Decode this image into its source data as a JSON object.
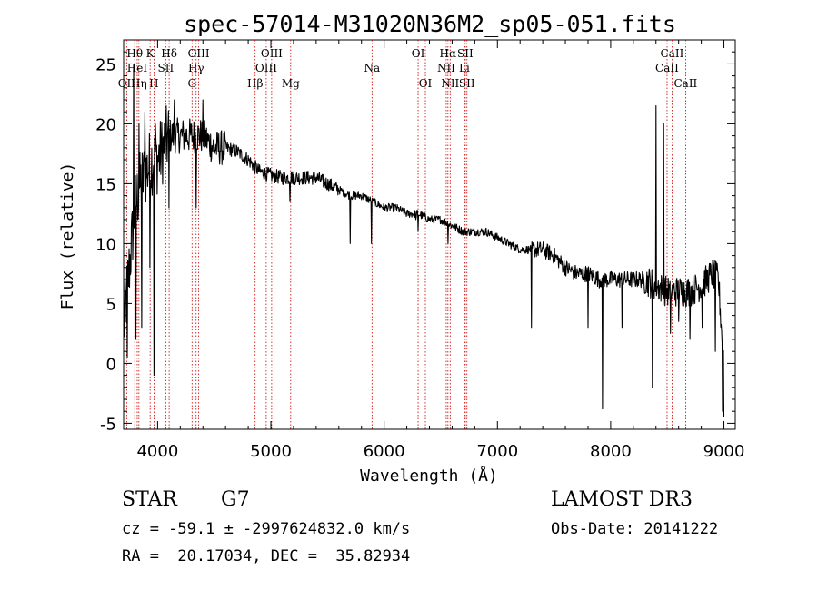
{
  "chart_data": {
    "type": "line",
    "title": "spec-57014-M31020N36M2_sp05-051.fits",
    "xlabel": "Wavelength (Å)",
    "ylabel": "Flux (relative)",
    "xlim": [
      3700,
      9100
    ],
    "ylim": [
      -5.5,
      27
    ],
    "xticks": [
      4000,
      5000,
      6000,
      7000,
      8000,
      9000
    ],
    "yticks": [
      -5,
      0,
      5,
      10,
      15,
      20,
      25
    ],
    "continuum": [
      [
        3700,
        3
      ],
      [
        3750,
        8
      ],
      [
        3800,
        13
      ],
      [
        3850,
        15
      ],
      [
        3900,
        16
      ],
      [
        3950,
        17
      ],
      [
        4000,
        17
      ],
      [
        4050,
        18
      ],
      [
        4100,
        19
      ],
      [
        4200,
        19
      ],
      [
        4300,
        19
      ],
      [
        4400,
        19
      ],
      [
        4500,
        18
      ],
      [
        4600,
        18
      ],
      [
        4700,
        17.7
      ],
      [
        4800,
        17
      ],
      [
        4900,
        16
      ],
      [
        5000,
        15.7
      ],
      [
        5100,
        15.5
      ],
      [
        5200,
        15.5
      ],
      [
        5300,
        15.5
      ],
      [
        5400,
        15.5
      ],
      [
        5500,
        15
      ],
      [
        5600,
        14.5
      ],
      [
        5700,
        14
      ],
      [
        5800,
        14
      ],
      [
        5900,
        13.5
      ],
      [
        6000,
        13
      ],
      [
        6100,
        13
      ],
      [
        6200,
        12.5
      ],
      [
        6300,
        12.5
      ],
      [
        6400,
        12
      ],
      [
        6500,
        12
      ],
      [
        6600,
        11.5
      ],
      [
        6700,
        11
      ],
      [
        6800,
        11
      ],
      [
        6900,
        11
      ],
      [
        7000,
        10.5
      ],
      [
        7100,
        10
      ],
      [
        7200,
        9.5
      ],
      [
        7300,
        9.5
      ],
      [
        7400,
        9.5
      ],
      [
        7500,
        9
      ],
      [
        7600,
        8
      ],
      [
        7700,
        7.5
      ],
      [
        7800,
        7.5
      ],
      [
        7900,
        7
      ],
      [
        8000,
        7
      ],
      [
        8100,
        7
      ],
      [
        8200,
        7
      ],
      [
        8300,
        7
      ],
      [
        8400,
        6.5
      ],
      [
        8500,
        6
      ],
      [
        8600,
        6
      ],
      [
        8700,
        6
      ],
      [
        8800,
        6.5
      ],
      [
        8900,
        7.5
      ],
      [
        8950,
        7
      ],
      [
        9000,
        0
      ]
    ],
    "features": [
      [
        3733,
        0.5
      ],
      [
        3790,
        25
      ],
      [
        3810,
        2
      ],
      [
        3835,
        20
      ],
      [
        3860,
        3
      ],
      [
        3889,
        21
      ],
      [
        3934,
        8
      ],
      [
        3968,
        -1
      ],
      [
        3980,
        20
      ],
      [
        4102,
        13
      ],
      [
        4150,
        22
      ],
      [
        4340,
        13
      ],
      [
        4400,
        22
      ],
      [
        5167,
        13.5
      ],
      [
        5700,
        10
      ],
      [
        5890,
        10
      ],
      [
        6280,
        12
      ],
      [
        6300,
        11
      ],
      [
        6563,
        10
      ],
      [
        7300,
        3
      ],
      [
        7800,
        3
      ],
      [
        7930,
        -3.8
      ],
      [
        8100,
        3
      ],
      [
        8370,
        -2
      ],
      [
        8400,
        21.5
      ],
      [
        8470,
        20
      ],
      [
        8530,
        2.5
      ],
      [
        8600,
        3.5
      ],
      [
        8700,
        2
      ],
      [
        8810,
        3
      ],
      [
        8925,
        1
      ],
      [
        8990,
        -4
      ],
      [
        9000,
        -4.5
      ]
    ],
    "lines": [
      {
        "name": "Hθ",
        "wave": 3798,
        "row": 1
      },
      {
        "name": "OII",
        "wave": 3727,
        "row": 3
      },
      {
        "name": "HeI",
        "wave": 3820,
        "row": 2
      },
      {
        "name": "Hη",
        "wave": 3835,
        "row": 3
      },
      {
        "name": "K",
        "wave": 3934,
        "row": 1
      },
      {
        "name": "SII",
        "wave": 4072,
        "row": 2
      },
      {
        "name": "H",
        "wave": 3968,
        "row": 3
      },
      {
        "name": "Hδ",
        "wave": 4102,
        "row": 1
      },
      {
        "name": "Hγ",
        "wave": 4340,
        "row": 2
      },
      {
        "name": "G",
        "wave": 4304,
        "row": 3
      },
      {
        "name": "OIII",
        "wave": 4363,
        "row": 1
      },
      {
        "name": "Hβ",
        "wave": 4861,
        "row": 3
      },
      {
        "name": "OIII",
        "wave": 5007,
        "row": 1
      },
      {
        "name": "OIII",
        "wave": 4959,
        "row": 2
      },
      {
        "name": "Mg",
        "wave": 5175,
        "row": 3
      },
      {
        "name": "Na",
        "wave": 5893,
        "row": 2
      },
      {
        "name": "OI",
        "wave": 6300,
        "row": 1
      },
      {
        "name": "OI",
        "wave": 6364,
        "row": 3
      },
      {
        "name": "Hα",
        "wave": 6563,
        "row": 1
      },
      {
        "name": "SII",
        "wave": 6716,
        "row": 1
      },
      {
        "name": "NII",
        "wave": 6548,
        "row": 2
      },
      {
        "name": "Li",
        "wave": 6708,
        "row": 2
      },
      {
        "name": "NII",
        "wave": 6583,
        "row": 3
      },
      {
        "name": "SII",
        "wave": 6731,
        "row": 3
      },
      {
        "name": "CaII",
        "wave": 8542,
        "row": 1
      },
      {
        "name": "CaII",
        "wave": 8498,
        "row": 2
      },
      {
        "name": "CaII",
        "wave": 8662,
        "row": 3
      }
    ]
  },
  "info": {
    "class_label": "STAR",
    "subclass": "G7",
    "survey": "LAMOST DR3",
    "redshift": "cz = -59.1 ± -2997624832.0 km/s",
    "obs_date": "Obs-Date: 20141222",
    "coords": "RA =  20.17034, DEC =  35.82934"
  },
  "colors": {
    "spectrum": "#000000",
    "lines": "#cc0000"
  }
}
